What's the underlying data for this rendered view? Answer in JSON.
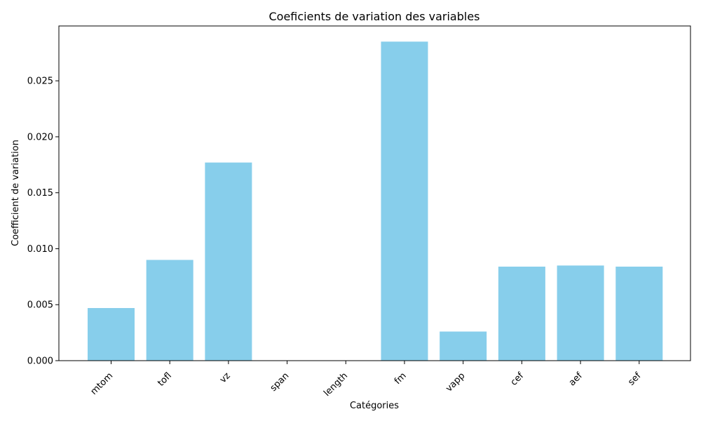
{
  "chart_data": {
    "type": "bar",
    "title": "Coeficients de variation des variables",
    "xlabel": "Catégories",
    "ylabel": "Coefficient de variation",
    "categories": [
      "mtom",
      "tofl",
      "vz",
      "span",
      "length",
      "fm",
      "vapp",
      "cef",
      "aef",
      "sef"
    ],
    "values": [
      0.0047,
      0.009,
      0.0177,
      0.0,
      0.0,
      0.0285,
      0.0026,
      0.0084,
      0.0085,
      0.0084
    ],
    "ylim": [
      0,
      0.0299
    ],
    "yticks": [
      0.0,
      0.005,
      0.01,
      0.015,
      0.02,
      0.025
    ],
    "ytick_labels": [
      "0.000",
      "0.005",
      "0.010",
      "0.015",
      "0.020",
      "0.025"
    ],
    "bar_color": "#87CEEB",
    "grid": false,
    "legend": false
  }
}
